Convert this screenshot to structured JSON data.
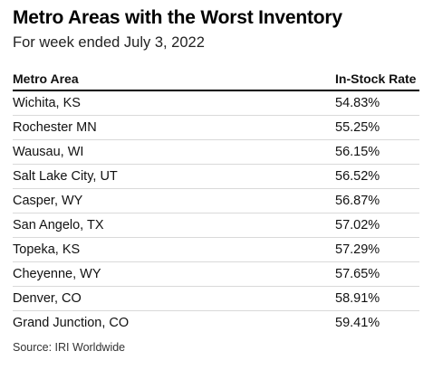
{
  "title": "Metro Areas with the Worst Inventory",
  "subtitle": "For week ended July 3, 2022",
  "source": "Source: IRI Worldwide",
  "chart_data": {
    "type": "table",
    "columns": [
      "Metro Area",
      "In-Stock Rate"
    ],
    "rows": [
      [
        "Wichita, KS",
        "54.83%"
      ],
      [
        "Rochester MN",
        "55.25%"
      ],
      [
        "Wausau, WI",
        "56.15%"
      ],
      [
        "Salt Lake City, UT",
        "56.52%"
      ],
      [
        "Casper, WY",
        "56.87%"
      ],
      [
        "San Angelo, TX",
        "57.02%"
      ],
      [
        "Topeka, KS",
        "57.29%"
      ],
      [
        "Cheyenne, WY",
        "57.65%"
      ],
      [
        "Denver, CO",
        "58.91%"
      ],
      [
        "Grand Junction, CO",
        "59.41%"
      ]
    ]
  }
}
